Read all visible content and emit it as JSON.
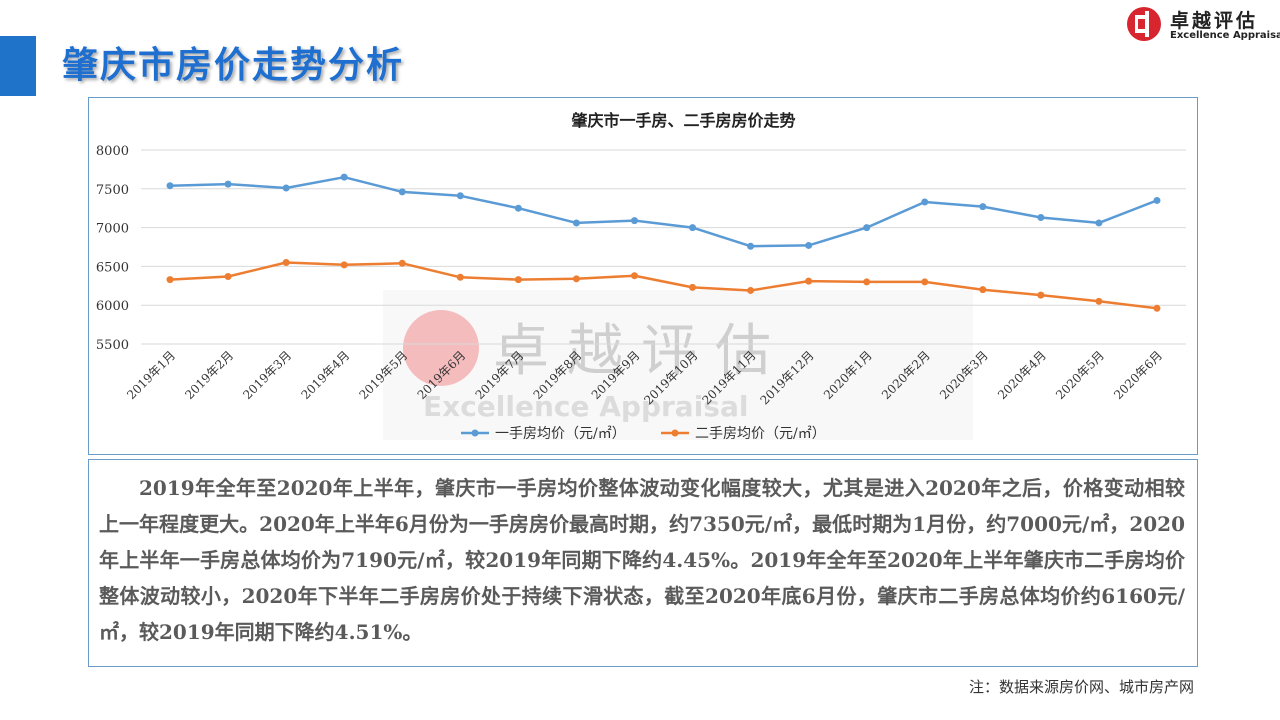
{
  "header": {
    "title": "肇庆市房价走势分析",
    "logo_cn": "卓越评估",
    "logo_en": "Excellence Appraisal"
  },
  "chart_data": {
    "type": "line",
    "title": "肇庆市一手房、二手房房价走势",
    "xlabel": "",
    "ylabel": "",
    "categories": [
      "2019年1月",
      "2019年2月",
      "2019年3月",
      "2019年4月",
      "2019年5月",
      "2019年6月",
      "2019年7月",
      "2019年8月",
      "2019年9月",
      "2019年10月",
      "2019年11月",
      "2019年12月",
      "2020年1月",
      "2020年2月",
      "2020年3月",
      "2020年4月",
      "2020年5月",
      "2020年6月"
    ],
    "series": [
      {
        "name": "一手房均价（元/㎡）",
        "color": "#5b9bd5",
        "values": [
          7540,
          7560,
          7510,
          7650,
          7460,
          7410,
          7250,
          7060,
          7090,
          7000,
          6760,
          6770,
          7000,
          7330,
          7270,
          7130,
          7060,
          7350
        ]
      },
      {
        "name": "二手房均价（元/㎡）",
        "color": "#ed7d31",
        "values": [
          6330,
          6370,
          6550,
          6520,
          6540,
          6360,
          6330,
          6340,
          6380,
          6230,
          6190,
          6310,
          6300,
          6300,
          6200,
          6130,
          6050,
          5960
        ]
      }
    ],
    "ylim": [
      5500,
      8000
    ],
    "yticks": [
      5500,
      6000,
      6500,
      7000,
      7500,
      8000
    ],
    "grid": true,
    "legend": "bottom",
    "watermark": {
      "cn": "卓越评估",
      "en": "Excellence Appraisal"
    }
  },
  "description": {
    "paragraph": "2019年全年至2020年上半年，肇庆市一手房均价整体波动变化幅度较大，尤其是进入2020年之后，价格变动相较上一年程度更大。2020年上半年6月份为一手房房价最高时期，约7350元/㎡，最低时期为1月份，约7000元/㎡，2020年上半年一手房总体均价为7190元/㎡，较2019年同期下降约4.45%。2019年全年至2020年上半年肇庆市二手房均价整体波动较小，2020年下半年二手房房价处于持续下滑状态，截至2020年底6月份，肇庆市二手房总体均价约6160元/㎡，较2019年同期下降约4.51%。"
  },
  "footer": {
    "source_note": "注：数据来源房价网、城市房产网"
  },
  "colors": {
    "accent": "#1f73c8",
    "title": "#1e6fd0",
    "series1": "#5b9bd5",
    "series2": "#ed7d31",
    "logo_red": "#d7262f"
  }
}
